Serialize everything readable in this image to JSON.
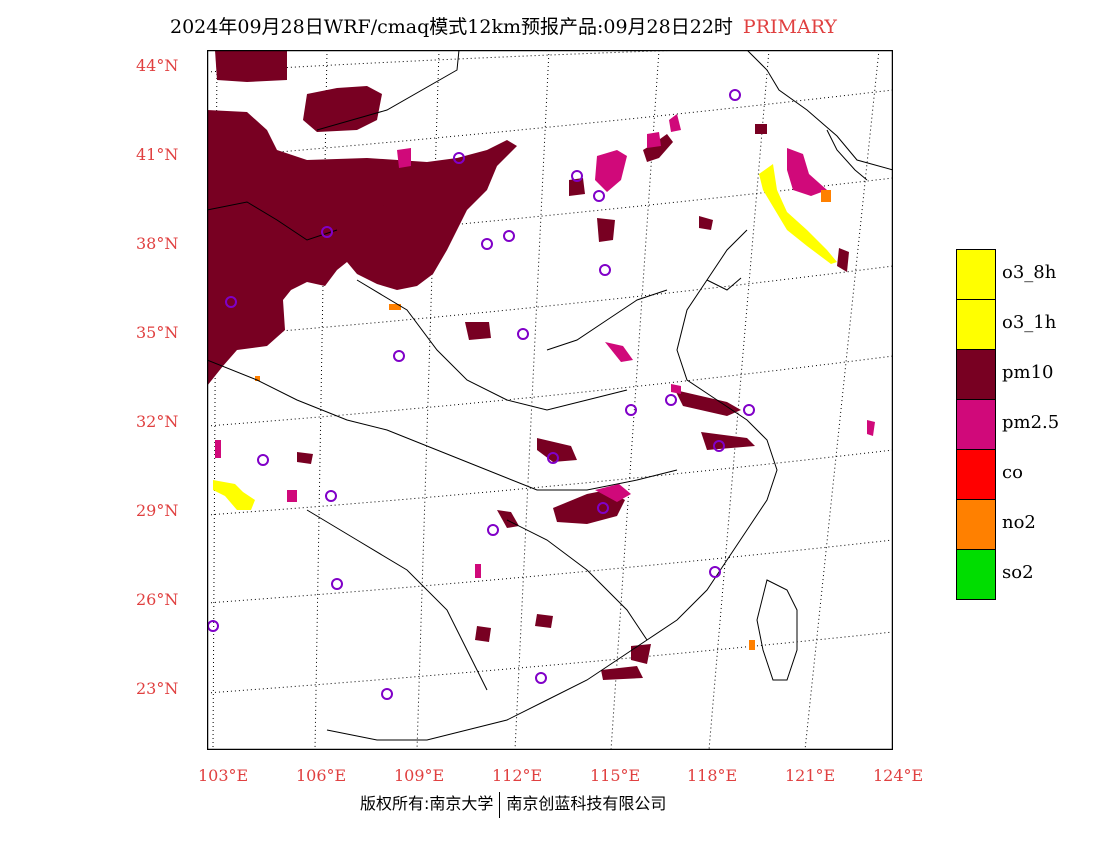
{
  "title": {
    "main": "2024年09月28日WRF/cmaq模式12km预报产品:09月28日22时",
    "tag": "PRIMARY"
  },
  "axes": {
    "y_labels": [
      "44°N",
      "41°N",
      "38°N",
      "35°N",
      "32°N",
      "29°N",
      "26°N",
      "23°N"
    ],
    "x_labels": [
      "103°E",
      "106°E",
      "109°E",
      "112°E",
      "115°E",
      "118°E",
      "121°E",
      "124°E"
    ]
  },
  "legend": [
    {
      "label": "o3_8h",
      "color": "#ffff00"
    },
    {
      "label": "o3_1h",
      "color": "#ffff00"
    },
    {
      "label": "pm10",
      "color": "#780022"
    },
    {
      "label": "pm2.5",
      "color": "#d0097a"
    },
    {
      "label": "co",
      "color": "#ff0000"
    },
    {
      "label": "no2",
      "color": "#ff8000"
    },
    {
      "label": "so2",
      "color": "#00dd00"
    }
  ],
  "footer": {
    "left": "版权所有:南京大学",
    "right": "南京创蓝科技有限公司"
  },
  "colors": {
    "pm10": "#780022",
    "pm25": "#d0097a",
    "o3": "#ffff00",
    "no2": "#ff8000",
    "station": "#8000c8",
    "axis_label": "#e04040"
  }
}
